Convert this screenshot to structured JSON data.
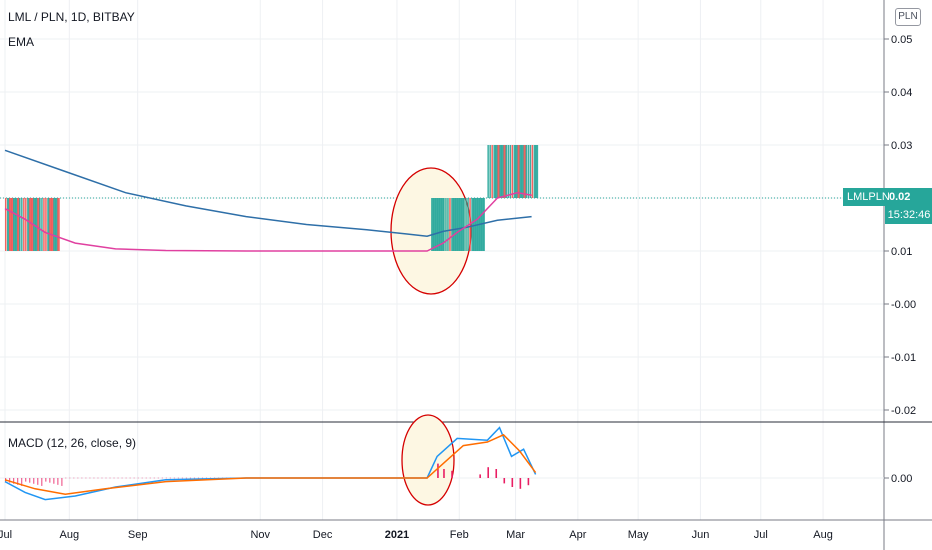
{
  "header": {
    "title": "LML / PLN, 1D, BITBAY",
    "indicator": "EMA",
    "currency_badge": "PLN"
  },
  "macd_panel": {
    "title": "MACD (12, 26, close, 9)"
  },
  "price_tag": {
    "symbol": "LMLPLN",
    "value": "0.02",
    "timer": "15:32:46"
  },
  "colors": {
    "up": "#26a69a",
    "down": "#ef5350",
    "ema_fast": "#e040a0",
    "ema_slow": "#2e6fa8",
    "macd_line": "#2196f3",
    "signal_line": "#ff6d00",
    "histogram": "#e91e63",
    "annotation_circle": "#d50000",
    "annotation_fill": "#fdf7e3"
  },
  "chart_data": [
    {
      "type": "line",
      "panel": "price",
      "y_ticks": [
        "0.05",
        "0.04",
        "0.03",
        "0.02",
        "0.01",
        "-0.00",
        "-0.01",
        "-0.02"
      ],
      "ylim": [
        -0.02,
        0.05
      ],
      "x_ticks": [
        "Jul",
        "Aug",
        "Sep",
        "Nov",
        "Dec",
        "2021",
        "Feb",
        "Mar",
        "Apr",
        "May",
        "Jun",
        "Jul",
        "Aug"
      ],
      "grid": true,
      "series": [
        {
          "values": [
            [
              0,
              0.029
            ],
            [
              30,
              0.025
            ],
            [
              60,
              0.021
            ],
            [
              90,
              0.0185
            ],
            [
              120,
              0.0165
            ],
            [
              150,
              0.015
            ],
            [
              180,
              0.014
            ],
            [
              200,
              0.0132
            ],
            [
              210,
              0.0128
            ],
            [
              218,
              0.0137
            ],
            [
              230,
              0.0145
            ],
            [
              245,
              0.0158
            ],
            [
              262,
              0.0165
            ]
          ]
        },
        {
          "values": [
            [
              0,
              0.018
            ],
            [
              10,
              0.016
            ],
            [
              20,
              0.0135
            ],
            [
              35,
              0.0115
            ],
            [
              55,
              0.0104
            ],
            [
              80,
              0.0101
            ],
            [
              120,
              0.01
            ],
            [
              210,
              0.01
            ],
            [
              218,
              0.0115
            ],
            [
              225,
              0.0135
            ],
            [
              235,
              0.016
            ],
            [
              245,
              0.02
            ],
            [
              255,
              0.021
            ],
            [
              262,
              0.0205
            ]
          ]
        }
      ],
      "candles_zones": [
        {
          "x_start": 0,
          "x_end": 26,
          "low": 0.01,
          "high": 0.02
        },
        {
          "x_start": 212,
          "x_end": 238,
          "low": 0.01,
          "high": 0.02
        },
        {
          "x_start": 240,
          "x_end": 264,
          "low": 0.02,
          "high": 0.03
        }
      ],
      "last_price": 0.02,
      "annotations": [
        "ellipse around late January breakout"
      ]
    },
    {
      "type": "line",
      "panel": "macd",
      "y_ticks": [
        "0.00"
      ],
      "series": [
        {
          "values": [
            [
              0,
              -0.0002
            ],
            [
              10,
              -0.0008
            ],
            [
              20,
              -0.0012
            ],
            [
              35,
              -0.001
            ],
            [
              55,
              -0.0005
            ],
            [
              80,
              -0.0001
            ],
            [
              120,
              0
            ],
            [
              210,
              0
            ],
            [
              215,
              0.0012
            ],
            [
              225,
              0.0022
            ],
            [
              240,
              0.0021
            ],
            [
              246,
              0.0028
            ],
            [
              252,
              0.0012
            ],
            [
              258,
              0.0016
            ],
            [
              264,
              0.0002
            ]
          ]
        },
        {
          "values": [
            [
              0,
              -0.0001
            ],
            [
              15,
              -0.0006
            ],
            [
              30,
              -0.0009
            ],
            [
              50,
              -0.0006
            ],
            [
              80,
              -0.0002
            ],
            [
              120,
              0
            ],
            [
              210,
              0
            ],
            [
              218,
              0.0008
            ],
            [
              228,
              0.0018
            ],
            [
              240,
              0.002
            ],
            [
              248,
              0.0024
            ],
            [
              256,
              0.0015
            ],
            [
              264,
              0.0003
            ]
          ]
        }
      ],
      "histogram": [
        [
          215,
          0.0008
        ],
        [
          218,
          0.0005
        ],
        [
          222,
          0.0004
        ],
        [
          236,
          0.0002
        ],
        [
          240,
          0.0006
        ],
        [
          244,
          0.0005
        ],
        [
          248,
          -0.0003
        ],
        [
          252,
          -0.0005
        ],
        [
          256,
          -0.0006
        ],
        [
          260,
          -0.0004
        ]
      ],
      "annotations": [
        "ellipse around late January MACD crossover"
      ]
    }
  ]
}
